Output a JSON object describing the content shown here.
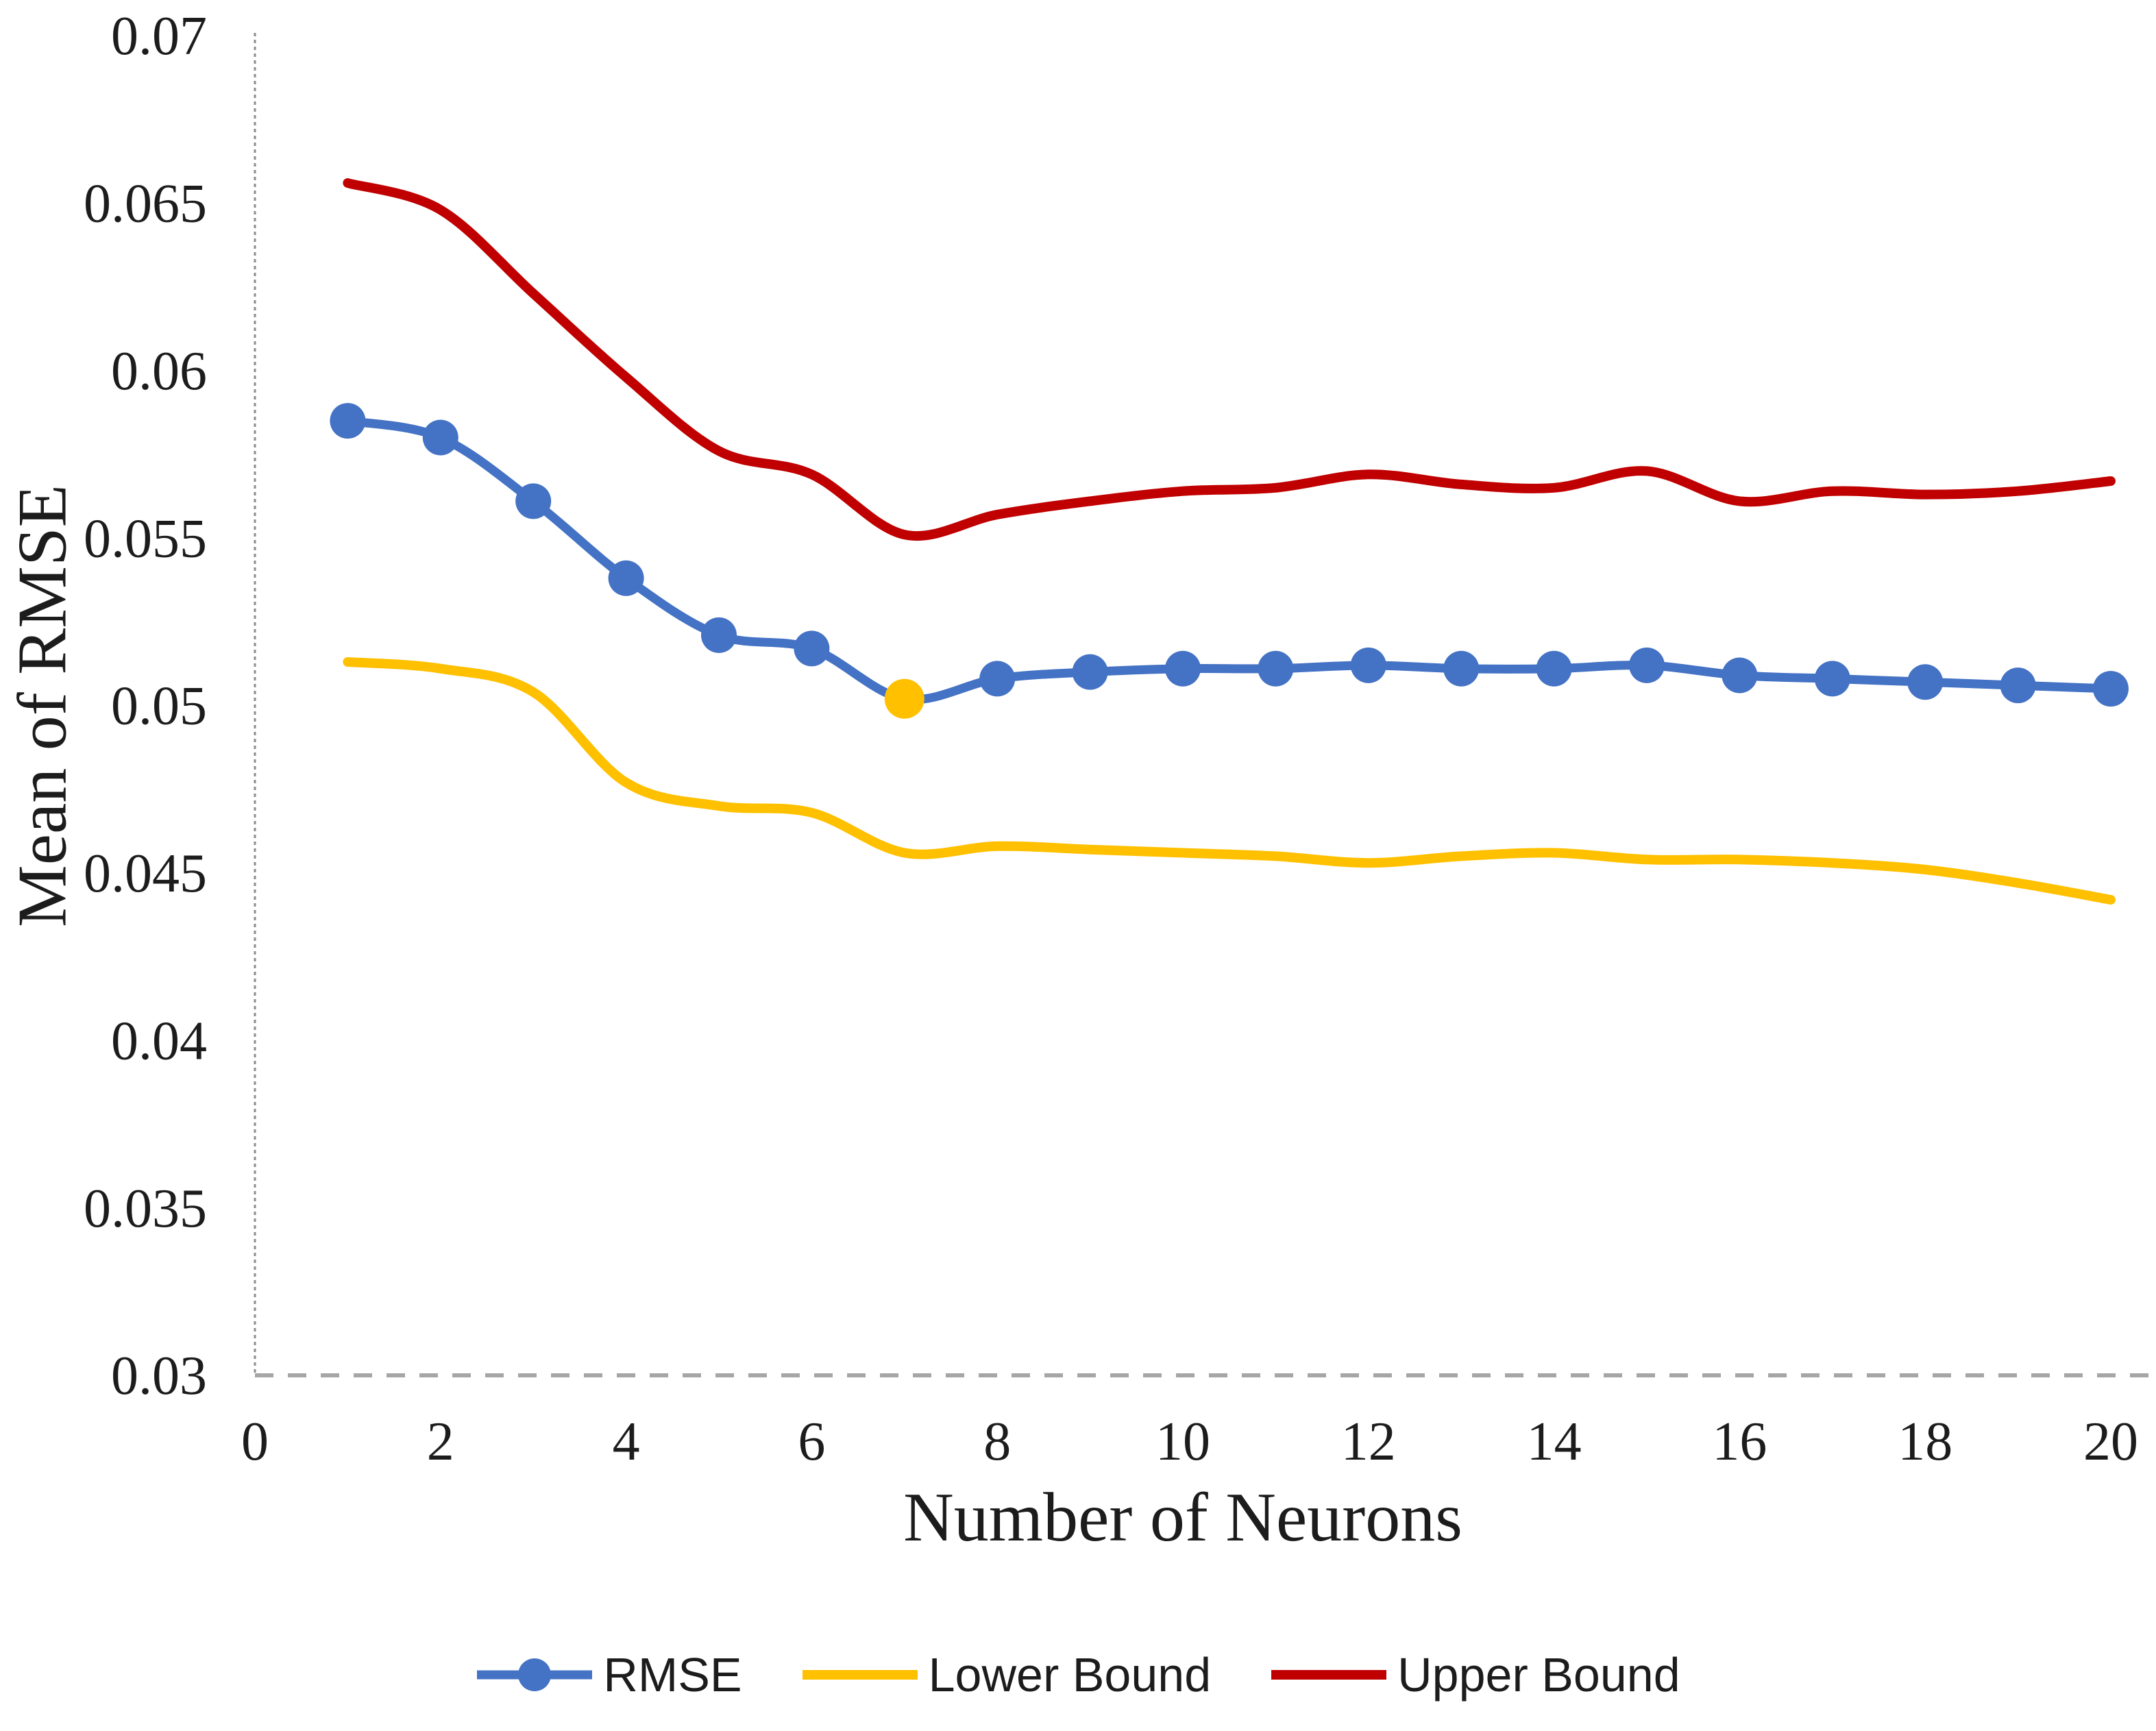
{
  "chart_data": {
    "type": "line",
    "title": "",
    "xlabel": "Number of Neurons",
    "ylabel": "Mean of RMSE",
    "x": [
      1,
      2,
      3,
      4,
      5,
      6,
      7,
      8,
      9,
      10,
      11,
      12,
      13,
      14,
      15,
      16,
      17,
      18,
      19,
      20
    ],
    "series": [
      {
        "name": "RMSE",
        "color": "#4472C4",
        "marker": true,
        "line_width": 13,
        "values": [
          0.0585,
          0.058,
          0.0561,
          0.0538,
          0.0521,
          0.0517,
          0.0502,
          0.0508,
          0.051,
          0.0511,
          0.0511,
          0.0512,
          0.0511,
          0.0511,
          0.0512,
          0.0509,
          0.0508,
          0.0507,
          0.0506,
          0.0505
        ]
      },
      {
        "name": "Lower Bound",
        "color": "#FFC000",
        "marker": false,
        "line_width": 14,
        "values": [
          0.0513,
          0.0511,
          0.0504,
          0.0477,
          0.047,
          0.0468,
          0.0456,
          0.0458,
          0.0457,
          0.0456,
          0.0455,
          0.0453,
          0.0455,
          0.0456,
          0.0454,
          0.0454,
          0.0453,
          0.0451,
          0.0447,
          0.0442
        ]
      },
      {
        "name": "Upper Bound",
        "color": "#C00000",
        "marker": false,
        "line_width": 14,
        "values": [
          0.0656,
          0.0648,
          0.0623,
          0.0598,
          0.0576,
          0.0569,
          0.0551,
          0.0557,
          0.0561,
          0.0564,
          0.0565,
          0.0569,
          0.0566,
          0.0565,
          0.057,
          0.0561,
          0.0564,
          0.0563,
          0.0564,
          0.0567
        ]
      }
    ],
    "highlight_point": {
      "series": "RMSE",
      "x": 7,
      "value": 0.0502,
      "color": "#FFC000"
    },
    "xlim": [
      0,
      20
    ],
    "ylim": [
      0.03,
      0.07
    ],
    "xticks": [
      0,
      2,
      4,
      6,
      8,
      10,
      12,
      14,
      16,
      18,
      20
    ],
    "xtick_labels": [
      "0",
      "2",
      "4",
      "6",
      "8",
      "10",
      "12",
      "14",
      "16",
      "18",
      "20"
    ],
    "yticks": [
      0.03,
      0.035,
      0.04,
      0.045,
      0.05,
      0.055,
      0.06,
      0.065,
      0.07
    ],
    "ytick_labels": [
      "0.03",
      "0.035",
      "0.04",
      "0.045",
      "0.05",
      "0.055",
      "0.06",
      "0.065",
      "0.07"
    ],
    "grid": false,
    "legend_position": "bottom",
    "axis_style": "dashed-gray",
    "colors": {
      "y_axis_line": "#8c8c8c",
      "x_axis_line": "#a6a6a6",
      "text": "#1c1c1c",
      "background": "#ffffff"
    }
  }
}
